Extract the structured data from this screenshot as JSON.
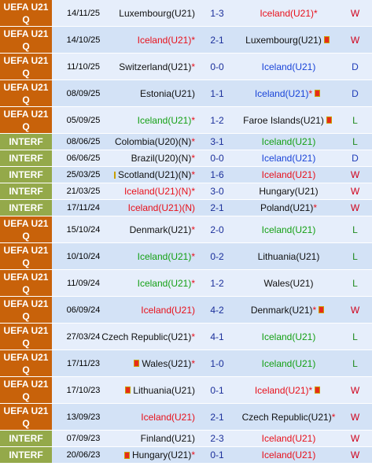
{
  "matches": [
    {
      "comp": "UEFA U21 Q",
      "type": "uefa",
      "date": "14/11/25",
      "home": "Luxembourg(U21)",
      "home_color": "black",
      "home_star": "",
      "home_card": false,
      "score": "1-3",
      "away": "Iceland(U21)",
      "away_color": "red",
      "away_star": "*",
      "away_card": false,
      "result": "W"
    },
    {
      "comp": "UEFA U21 Q",
      "type": "uefa",
      "date": "14/10/25",
      "home": "Iceland(U21)",
      "home_color": "red",
      "home_star": "*",
      "home_card": false,
      "score": "2-1",
      "away": "Luxembourg(U21)",
      "away_color": "black",
      "away_star": "",
      "away_card": true,
      "result": "W"
    },
    {
      "comp": "UEFA U21 Q",
      "type": "uefa",
      "date": "11/10/25",
      "home": "Switzerland(U21)",
      "home_color": "black",
      "home_star": "*",
      "home_card": false,
      "score": "0-0",
      "away": "Iceland(U21)",
      "away_color": "blue",
      "away_star": "",
      "away_card": false,
      "result": "D"
    },
    {
      "comp": "UEFA U21 Q",
      "type": "uefa",
      "date": "08/09/25",
      "home": "Estonia(U21)",
      "home_color": "black",
      "home_star": "",
      "home_card": false,
      "score": "1-1",
      "away": "Iceland(U21)",
      "away_color": "blue",
      "away_star": "*",
      "away_card": true,
      "result": "D"
    },
    {
      "comp": "UEFA U21 Q",
      "type": "uefa",
      "date": "05/09/25",
      "home": "Iceland(U21)",
      "home_color": "green",
      "home_star": "*",
      "home_card": false,
      "score": "1-2",
      "away": "Faroe Islands(U21)",
      "away_color": "black",
      "away_star": "",
      "away_card": true,
      "result": "L"
    },
    {
      "comp": "INTERF",
      "type": "interf",
      "date": "08/06/25",
      "home": "Colombia(U20)(N)",
      "home_color": "black",
      "home_star": "*",
      "home_card": false,
      "score": "3-1",
      "away": "Iceland(U21)",
      "away_color": "green",
      "away_star": "",
      "away_card": false,
      "result": "L"
    },
    {
      "comp": "INTERF",
      "type": "interf",
      "date": "06/06/25",
      "home": "Brazil(U20)(N)",
      "home_color": "black",
      "home_star": "*",
      "home_card": false,
      "score": "0-0",
      "away": "Iceland(U21)",
      "away_color": "blue",
      "away_star": "",
      "away_card": false,
      "result": "D"
    },
    {
      "comp": "INTERF",
      "type": "interf",
      "date": "25/03/25",
      "home": "Scotland(U21)(N)",
      "home_color": "black",
      "home_star": "*",
      "home_card": true,
      "score": "1-6",
      "away": "Iceland(U21)",
      "away_color": "red",
      "away_star": "",
      "away_card": false,
      "result": "W"
    },
    {
      "comp": "INTERF",
      "type": "interf",
      "date": "21/03/25",
      "home": "Iceland(U21)(N)",
      "home_color": "red",
      "home_star": "*",
      "home_card": false,
      "score": "3-0",
      "away": "Hungary(U21)",
      "away_color": "black",
      "away_star": "",
      "away_card": false,
      "result": "W"
    },
    {
      "comp": "INTERF",
      "type": "interf",
      "date": "17/11/24",
      "home": "Iceland(U21)(N)",
      "home_color": "red",
      "home_star": "",
      "home_card": false,
      "score": "2-1",
      "away": "Poland(U21)",
      "away_color": "black",
      "away_star": "*",
      "away_card": false,
      "result": "W"
    },
    {
      "comp": "UEFA U21 Q",
      "type": "uefa",
      "date": "15/10/24",
      "home": "Denmark(U21)",
      "home_color": "black",
      "home_star": "*",
      "home_card": false,
      "score": "2-0",
      "away": "Iceland(U21)",
      "away_color": "green",
      "away_star": "",
      "away_card": false,
      "result": "L"
    },
    {
      "comp": "UEFA U21 Q",
      "type": "uefa",
      "date": "10/10/24",
      "home": "Iceland(U21)",
      "home_color": "green",
      "home_star": "*",
      "home_card": false,
      "score": "0-2",
      "away": "Lithuania(U21)",
      "away_color": "black",
      "away_star": "",
      "away_card": false,
      "result": "L"
    },
    {
      "comp": "UEFA U21 Q",
      "type": "uefa",
      "date": "11/09/24",
      "home": "Iceland(U21)",
      "home_color": "green",
      "home_star": "*",
      "home_card": false,
      "score": "1-2",
      "away": "Wales(U21)",
      "away_color": "black",
      "away_star": "",
      "away_card": false,
      "result": "L"
    },
    {
      "comp": "UEFA U21 Q",
      "type": "uefa",
      "date": "06/09/24",
      "home": "Iceland(U21)",
      "home_color": "red",
      "home_star": "",
      "home_card": false,
      "score": "4-2",
      "away": "Denmark(U21)",
      "away_color": "black",
      "away_star": "*",
      "away_card": true,
      "result": "W"
    },
    {
      "comp": "UEFA U21 Q",
      "type": "uefa",
      "date": "27/03/24",
      "home": "Czech Republic(U21)",
      "home_color": "black",
      "home_star": "*",
      "home_card": false,
      "score": "4-1",
      "away": "Iceland(U21)",
      "away_color": "green",
      "away_star": "",
      "away_card": false,
      "result": "L"
    },
    {
      "comp": "UEFA U21 Q",
      "type": "uefa",
      "date": "17/11/23",
      "home": "Wales(U21)",
      "home_color": "black",
      "home_star": "*",
      "home_card": true,
      "score": "1-0",
      "away": "Iceland(U21)",
      "away_color": "green",
      "away_star": "",
      "away_card": false,
      "result": "L"
    },
    {
      "comp": "UEFA U21 Q",
      "type": "uefa",
      "date": "17/10/23",
      "home": "Lithuania(U21)",
      "home_color": "black",
      "home_star": "",
      "home_card": true,
      "score": "0-1",
      "away": "Iceland(U21)",
      "away_color": "red",
      "away_star": "*",
      "away_card": true,
      "result": "W"
    },
    {
      "comp": "UEFA U21 Q",
      "type": "uefa",
      "date": "13/09/23",
      "home": "Iceland(U21)",
      "home_color": "red",
      "home_star": "",
      "home_card": false,
      "score": "2-1",
      "away": "Czech Republic(U21)",
      "away_color": "black",
      "away_star": "*",
      "away_card": false,
      "result": "W"
    },
    {
      "comp": "INTERF",
      "type": "interf",
      "date": "07/09/23",
      "home": "Finland(U21)",
      "home_color": "black",
      "home_star": "",
      "home_card": false,
      "score": "2-3",
      "away": "Iceland(U21)",
      "away_color": "red",
      "away_star": "",
      "away_card": false,
      "result": "W"
    },
    {
      "comp": "INTERF",
      "type": "interf",
      "date": "20/06/23",
      "home": "Hungary(U21)",
      "home_color": "black",
      "home_star": "*",
      "home_card": true,
      "score": "0-1",
      "away": "Iceland(U21)",
      "away_color": "red",
      "away_star": "",
      "away_card": false,
      "result": "W"
    }
  ]
}
